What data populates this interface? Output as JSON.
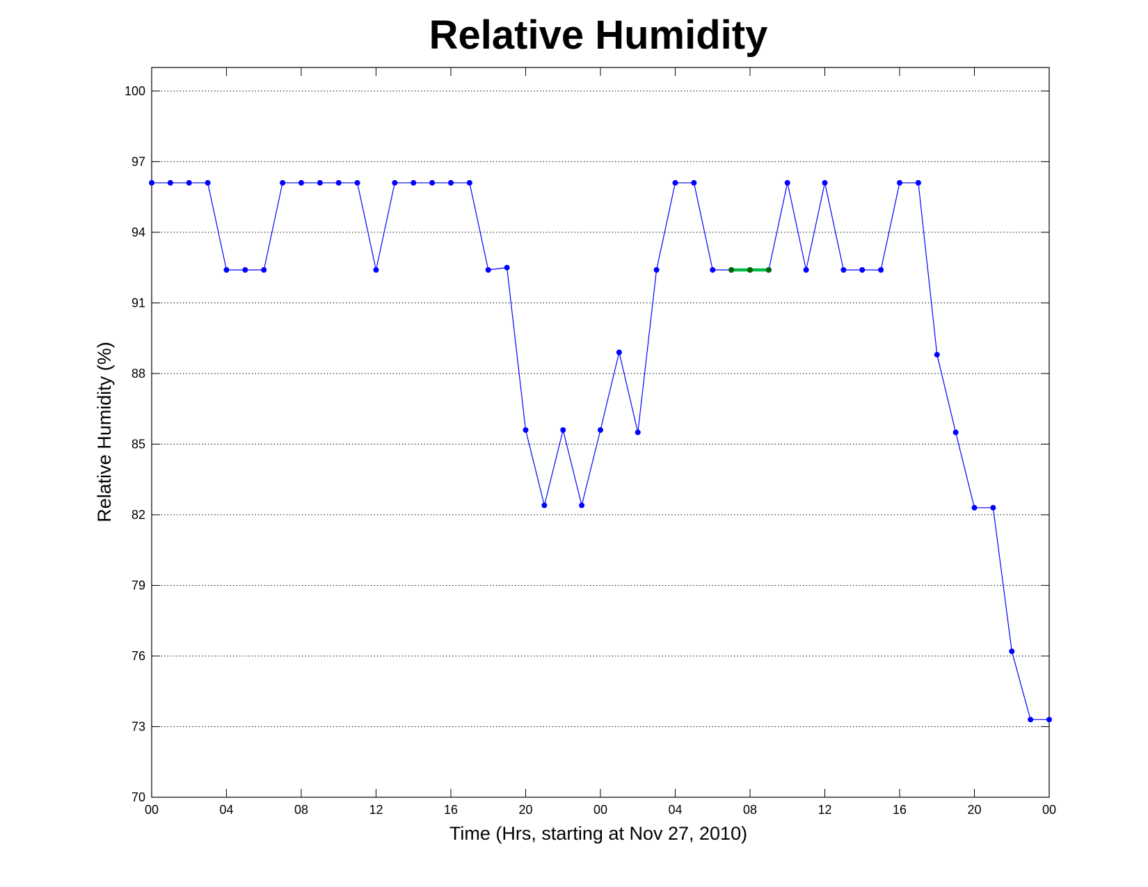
{
  "chart_data": {
    "type": "line",
    "title": "Relative Humidity",
    "xlabel": "Time (Hrs, starting at Nov 27, 2010)",
    "ylabel": "Relative Humidity (%)",
    "xlim": [
      0,
      48
    ],
    "ylim": [
      70,
      101
    ],
    "x_ticks": [
      0,
      4,
      8,
      12,
      16,
      20,
      24,
      28,
      32,
      36,
      40,
      44,
      48
    ],
    "x_tick_labels": [
      "00",
      "04",
      "08",
      "12",
      "16",
      "20",
      "00",
      "04",
      "08",
      "12",
      "16",
      "20",
      "00"
    ],
    "y_ticks": [
      70,
      73,
      76,
      79,
      82,
      85,
      88,
      91,
      94,
      97,
      100
    ],
    "y_tick_labels": [
      "70",
      "73",
      "76",
      "79",
      "82",
      "85",
      "88",
      "91",
      "94",
      "97",
      "100"
    ],
    "grid": "y-dotted",
    "series": [
      {
        "color": "#0000ff",
        "x": [
          0,
          1,
          2,
          3,
          4,
          5,
          6,
          7,
          8,
          9,
          10,
          11,
          12,
          13,
          14,
          15,
          16,
          17,
          18,
          19,
          20,
          21,
          22,
          23,
          24,
          25,
          26,
          27,
          28,
          29,
          30,
          31,
          32,
          33,
          34,
          35,
          36,
          37,
          38,
          39,
          40,
          41,
          42,
          43,
          44,
          45,
          46,
          47,
          48
        ],
        "y": [
          96.1,
          96.1,
          96.1,
          96.1,
          92.4,
          92.4,
          92.4,
          96.1,
          96.1,
          96.1,
          96.1,
          96.1,
          92.4,
          96.1,
          96.1,
          96.1,
          96.1,
          96.1,
          92.4,
          92.5,
          85.6,
          82.4,
          85.6,
          82.4,
          85.6,
          88.9,
          85.5,
          92.4,
          96.1,
          96.1,
          92.4,
          92.4,
          92.4,
          92.4,
          96.1,
          92.4,
          96.1,
          92.4,
          92.4,
          92.4,
          96.1,
          96.1,
          88.8,
          85.5,
          82.3,
          82.3,
          76.2,
          73.3,
          73.3
        ]
      },
      {
        "color": "#00bb44",
        "x": [
          31,
          32,
          33
        ],
        "y": [
          92.4,
          92.4,
          92.4
        ]
      }
    ]
  }
}
